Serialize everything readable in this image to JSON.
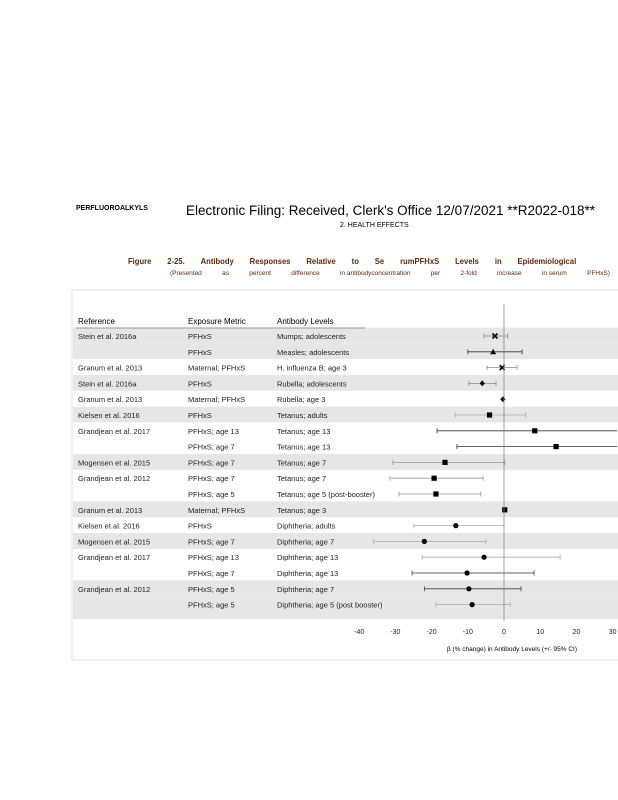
{
  "header": {
    "running_head": "PERFLUOROALKYLS",
    "filing_stamp": "Electronic Filing: Received, Clerk's Office 12/07/2021 **R2022-018**",
    "chapter": "2.  HEALTH EFFECTS"
  },
  "caption": {
    "line1": [
      "Figure",
      "2-25.",
      "Antibody",
      "Responses",
      "Relative",
      "to",
      "Se",
      "rumPFHxS",
      "Levels",
      "in",
      "Epidemiological"
    ],
    "line2": [
      "(Presented",
      "as",
      "percent",
      "difference",
      "in antibodyconcentration",
      "per",
      "2-fold",
      "increase",
      "in serum",
      "PFHxS)"
    ]
  },
  "table": {
    "headers": {
      "reference": "Reference",
      "exposure": "Exposure Metric",
      "antibody": "Antibody Levels"
    }
  },
  "chart_data": {
    "type": "forest",
    "xlabel": "β  (% change) in Antibody Levels (+/- 95% CI)",
    "xticks": [
      -40,
      -30,
      -20,
      -10,
      0,
      10,
      20,
      30
    ],
    "xlim": [
      -45,
      31
    ],
    "reference_line": 0,
    "rows": [
      {
        "reference": "Stein et al. 2016a",
        "exposure": "PFHxS",
        "antibody": "Mumps; adolescents",
        "estimate": -2.5,
        "ci": [
          -5.5,
          1
        ],
        "marker": "x",
        "shade": true,
        "ci_color": "#888888"
      },
      {
        "reference": "",
        "exposure": "PFHxS",
        "antibody": "Measles; adolescents",
        "estimate": -3,
        "ci": [
          -10,
          5
        ],
        "marker": "triangle",
        "shade": true,
        "ci_color": "#333333"
      },
      {
        "reference": "Granum et al. 2013",
        "exposure": "Maternal; PFHxS",
        "antibody": "H. influenza B; age 3",
        "estimate": -0.5,
        "ci": [
          -4.7,
          3.6
        ],
        "marker": "x",
        "shade": false,
        "ci_color": "#888888"
      },
      {
        "reference": "Stein et al. 2016a",
        "exposure": "PFHxS",
        "antibody": "Rubella; adolescents",
        "estimate": -6,
        "ci": [
          -9.7,
          -2.2
        ],
        "marker": "diamond",
        "shade": true,
        "ci_color": "#888888"
      },
      {
        "reference": "Granum et al. 2013",
        "exposure": "Maternal; PFHxS",
        "antibody": "Rubella; age 3",
        "estimate": -0.3,
        "ci": [
          -0.3,
          -0.3
        ],
        "marker": "diamond",
        "shade": false,
        "ci_color": "#333333"
      },
      {
        "reference": "Kielsen et al. 2016",
        "exposure": "PFHxS",
        "antibody": "Tetanus; adults",
        "estimate": -4,
        "ci": [
          -13.5,
          6
        ],
        "marker": "square",
        "shade": true,
        "ci_color": "#aaaaaa"
      },
      {
        "reference": "Grandjean et al. 2017",
        "exposure": "PFHxS; age 13",
        "antibody": "Tetanus; age 13",
        "estimate": 8.5,
        "ci": [
          -18.5,
          35
        ],
        "marker": "square",
        "shade": false,
        "ci_color": "#333333"
      },
      {
        "reference": "",
        "exposure": "PFHxS; age 7",
        "antibody": "Tetanus; age 13",
        "estimate": 14.4,
        "ci": [
          -13,
          35
        ],
        "marker": "square",
        "shade": false,
        "ci_color": "#333333"
      },
      {
        "reference": "Mogensen et al. 2015",
        "exposure": "PFHxS; age 7",
        "antibody": "Tetanus; age 7",
        "estimate": -16.3,
        "ci": [
          -30.7,
          0.2
        ],
        "marker": "square",
        "shade": true,
        "ci_color": "#999999"
      },
      {
        "reference": "Grandjean et al. 2012",
        "exposure": "PFHxS; age 7",
        "antibody": "Tetanus; age 7",
        "estimate": -19.3,
        "ci": [
          -31.5,
          -5.8
        ],
        "marker": "square",
        "shade": false,
        "ci_color": "#999999"
      },
      {
        "reference": "",
        "exposure": "PFHxS; age 5",
        "antibody": "Tetanus; age 5 (post-booster)",
        "estimate": -18.8,
        "ci": [
          -29,
          -6.4
        ],
        "marker": "square",
        "shade": false,
        "ci_color": "#999999"
      },
      {
        "reference": "Granum et al. 2013",
        "exposure": "Maternal; PFHxS",
        "antibody": "Tetanus; age 3",
        "estimate": 0.2,
        "ci": [
          0.2,
          0.2
        ],
        "marker": "square",
        "shade": true,
        "ci_color": "#333333"
      },
      {
        "reference": "Kielsen et al. 2016",
        "exposure": "PFHxS",
        "antibody": "Diphtheria; adults",
        "estimate": -13.3,
        "ci": [
          -24.9,
          0
        ],
        "marker": "circle",
        "shade": false,
        "ci_color": "#aaaaaa"
      },
      {
        "reference": "Mogensen et al. 2015",
        "exposure": "PFHxS; age 7",
        "antibody": "Diphtheria; age 7",
        "estimate": -22,
        "ci": [
          -36,
          -5
        ],
        "marker": "circle",
        "shade": true,
        "ci_color": "#aaaaaa"
      },
      {
        "reference": "Grandjean et al. 2017",
        "exposure": "PFHxS; age 13",
        "antibody": "Diphtheria; age 13",
        "estimate": -5.5,
        "ci": [
          -22.6,
          15.5
        ],
        "marker": "circle",
        "shade": false,
        "ci_color": "#aaaaaa"
      },
      {
        "reference": "",
        "exposure": "PFHxS; age 7",
        "antibody": "Diphtheria; age 13",
        "estimate": -10.2,
        "ci": [
          -25.4,
          8.3
        ],
        "marker": "circle",
        "shade": false,
        "ci_color": "#333333"
      },
      {
        "reference": "Grandjean et al. 2012",
        "exposure": "PFHxS; age 5",
        "antibody": "Diphtheria; age 7",
        "estimate": -9.7,
        "ci": [
          -22,
          4.7
        ],
        "marker": "circle",
        "shade": true,
        "ci_color": "#444444"
      },
      {
        "reference": "",
        "exposure": "PFHxS; age 5",
        "antibody": "Diphtheria; age 5 (post booster)",
        "estimate": -8.8,
        "ci": [
          -18.8,
          1.7
        ],
        "marker": "circle",
        "shade": true,
        "ci_color": "#aaaaaa"
      }
    ]
  }
}
